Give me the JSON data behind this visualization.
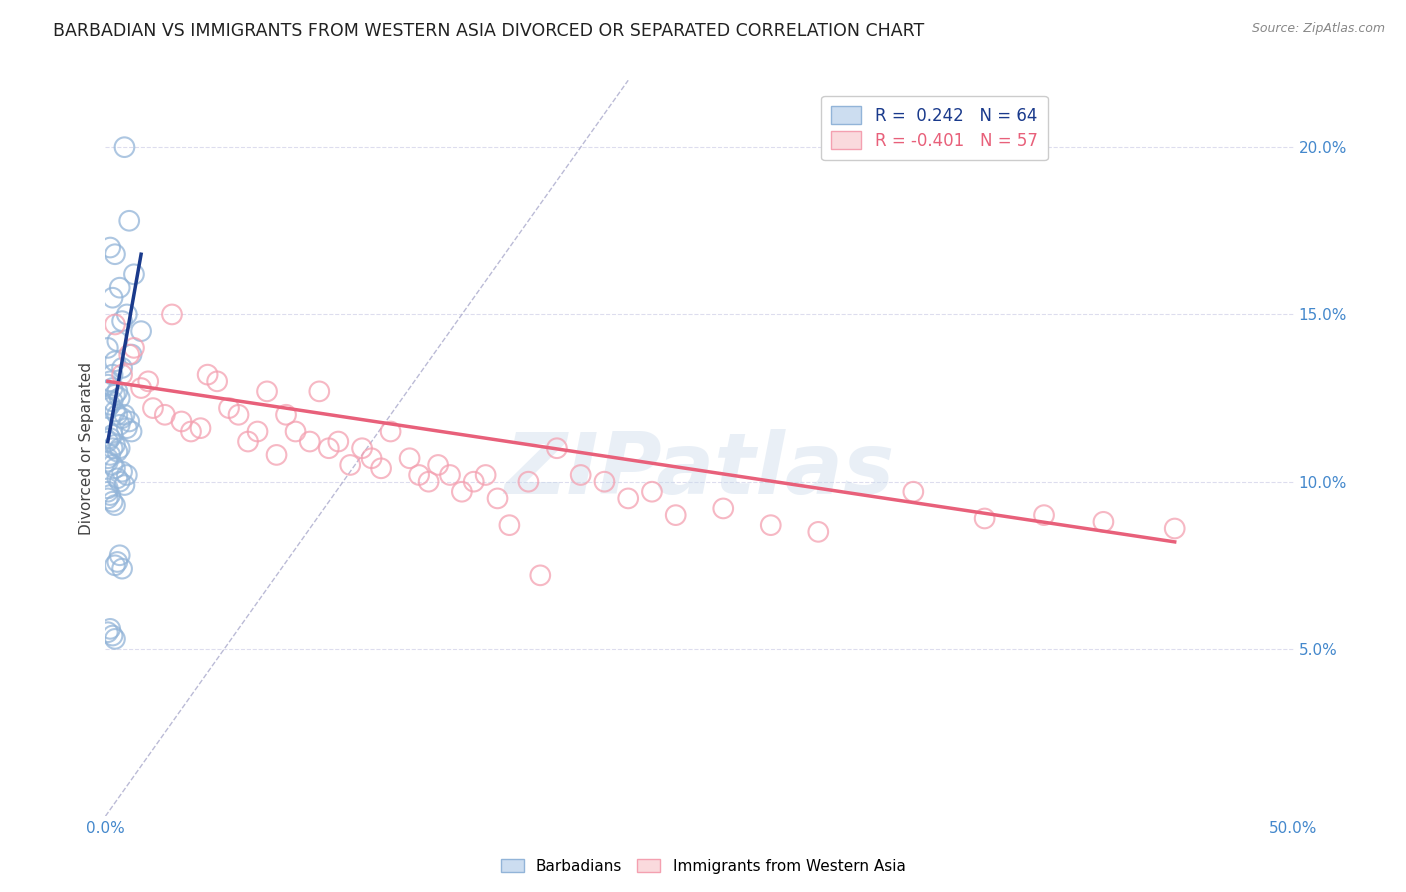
{
  "title": "BARBADIAN VS IMMIGRANTS FROM WESTERN ASIA DIVORCED OR SEPARATED CORRELATION CHART",
  "source": "Source: ZipAtlas.com",
  "ylabel": "Divorced or Separated",
  "xlim": [
    0.0,
    0.5
  ],
  "ylim": [
    0.0,
    0.22
  ],
  "yticks_right": [
    0.05,
    0.1,
    0.15,
    0.2
  ],
  "ytick_right_labels": [
    "5.0%",
    "10.0%",
    "15.0%",
    "20.0%"
  ],
  "legend_blue_r": "0.242",
  "legend_blue_n": "64",
  "legend_pink_r": "-0.401",
  "legend_pink_n": "57",
  "blue_color": "#92B4D8",
  "pink_color": "#F4A0B0",
  "blue_line_color": "#1A3A8C",
  "pink_line_color": "#E8607A",
  "diagonal_color": "#AAAACC",
  "background_color": "#FFFFFF",
  "grid_color": "#DDDDEE",
  "watermark_text": "ZIPatlas",
  "blue_scatter_x": [
    0.008,
    0.01,
    0.002,
    0.004,
    0.012,
    0.006,
    0.003,
    0.009,
    0.007,
    0.015,
    0.005,
    0.001,
    0.011,
    0.004,
    0.007,
    0.003,
    0.002,
    0.001,
    0.003,
    0.005,
    0.004,
    0.006,
    0.003,
    0.002,
    0.001,
    0.004,
    0.005,
    0.008,
    0.007,
    0.01,
    0.006,
    0.009,
    0.011,
    0.003,
    0.002,
    0.001,
    0.004,
    0.006,
    0.003,
    0.005,
    0.002,
    0.001,
    0.001,
    0.003,
    0.004,
    0.007,
    0.009,
    0.005,
    0.006,
    0.008,
    0.001,
    0.001,
    0.002,
    0.001,
    0.003,
    0.004,
    0.006,
    0.005,
    0.004,
    0.007,
    0.002,
    0.001,
    0.003,
    0.004
  ],
  "blue_scatter_y": [
    0.2,
    0.178,
    0.17,
    0.168,
    0.162,
    0.158,
    0.155,
    0.15,
    0.148,
    0.145,
    0.142,
    0.14,
    0.138,
    0.136,
    0.134,
    0.132,
    0.13,
    0.129,
    0.128,
    0.127,
    0.126,
    0.125,
    0.124,
    0.123,
    0.122,
    0.121,
    0.12,
    0.12,
    0.119,
    0.118,
    0.117,
    0.116,
    0.115,
    0.114,
    0.113,
    0.112,
    0.111,
    0.11,
    0.11,
    0.109,
    0.108,
    0.107,
    0.106,
    0.105,
    0.104,
    0.103,
    0.102,
    0.101,
    0.1,
    0.099,
    0.098,
    0.097,
    0.096,
    0.095,
    0.094,
    0.093,
    0.078,
    0.076,
    0.075,
    0.074,
    0.056,
    0.055,
    0.054,
    0.053
  ],
  "pink_scatter_x": [
    0.004,
    0.007,
    0.01,
    0.012,
    0.015,
    0.018,
    0.02,
    0.025,
    0.028,
    0.032,
    0.036,
    0.04,
    0.043,
    0.047,
    0.052,
    0.056,
    0.06,
    0.064,
    0.068,
    0.072,
    0.076,
    0.08,
    0.086,
    0.09,
    0.094,
    0.098,
    0.103,
    0.108,
    0.112,
    0.116,
    0.12,
    0.128,
    0.132,
    0.136,
    0.14,
    0.145,
    0.15,
    0.155,
    0.16,
    0.165,
    0.17,
    0.178,
    0.183,
    0.19,
    0.2,
    0.21,
    0.22,
    0.23,
    0.24,
    0.26,
    0.28,
    0.3,
    0.34,
    0.37,
    0.395,
    0.42,
    0.45
  ],
  "pink_scatter_y": [
    0.147,
    0.132,
    0.138,
    0.14,
    0.128,
    0.13,
    0.122,
    0.12,
    0.15,
    0.118,
    0.115,
    0.116,
    0.132,
    0.13,
    0.122,
    0.12,
    0.112,
    0.115,
    0.127,
    0.108,
    0.12,
    0.115,
    0.112,
    0.127,
    0.11,
    0.112,
    0.105,
    0.11,
    0.107,
    0.104,
    0.115,
    0.107,
    0.102,
    0.1,
    0.105,
    0.102,
    0.097,
    0.1,
    0.102,
    0.095,
    0.087,
    0.1,
    0.072,
    0.11,
    0.102,
    0.1,
    0.095,
    0.097,
    0.09,
    0.092,
    0.087,
    0.085,
    0.097,
    0.089,
    0.09,
    0.088,
    0.086
  ],
  "blue_line_x": [
    0.001,
    0.015
  ],
  "blue_line_y": [
    0.112,
    0.168
  ],
  "pink_line_x": [
    0.001,
    0.45
  ],
  "pink_line_y": [
    0.13,
    0.082
  ]
}
